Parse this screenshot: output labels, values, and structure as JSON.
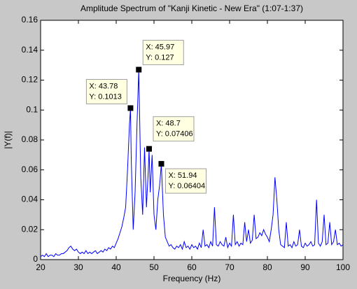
{
  "chart_data": {
    "type": "line",
    "title": "Amplitude Spectrum of \"Kanji Kinetic - New Era\" (1:07-1:37)",
    "x_label": "Frequency (Hz)",
    "y_label": "|Y(f)|",
    "xlim": [
      20,
      100
    ],
    "xticks": [
      20,
      30,
      40,
      50,
      60,
      70,
      80,
      90,
      100
    ],
    "ylim": [
      0,
      0.16
    ],
    "yticks": [
      0,
      0.02,
      0.04,
      0.06,
      0.08,
      0.1,
      0.12,
      0.14,
      0.16
    ],
    "grid": false,
    "series": [
      {
        "color": "#0000ff",
        "x": [
          20,
          20.5,
          21,
          21.5,
          22,
          22.5,
          23,
          23.5,
          24,
          24.5,
          25,
          25.5,
          26,
          26.5,
          27,
          27.5,
          28,
          28.5,
          29,
          29.5,
          30,
          30.5,
          31,
          31.5,
          32,
          32.5,
          33,
          33.5,
          34,
          34.5,
          35,
          35.5,
          36,
          36.5,
          37,
          37.5,
          38,
          38.5,
          39,
          39.5,
          40,
          40.5,
          41,
          41.5,
          42,
          42.5,
          43,
          43.5,
          43.78,
          44,
          44.5,
          45,
          45.5,
          45.97,
          46.5,
          47,
          47.5,
          48,
          48.5,
          48.7,
          49,
          49.5,
          50,
          50.5,
          51,
          51.5,
          51.94,
          52.5,
          53,
          53.5,
          54,
          54.5,
          55,
          55.5,
          56,
          56.5,
          57,
          57.5,
          58,
          58.5,
          59,
          59.5,
          60,
          60.5,
          61,
          61.5,
          62,
          62.5,
          63,
          63.5,
          64,
          64.5,
          65,
          65.5,
          66,
          66.5,
          67,
          67.5,
          68,
          68.5,
          69,
          69.5,
          70,
          70.5,
          71,
          71.5,
          72,
          72.5,
          73,
          73.5,
          74,
          74.5,
          75,
          75.5,
          76,
          76.5,
          77,
          77.5,
          78,
          78.5,
          79,
          79.5,
          80,
          80.5,
          81,
          81.5,
          82,
          82.5,
          83,
          83.5,
          84,
          84.5,
          85,
          85.5,
          86,
          86.5,
          87,
          87.5,
          88,
          88.5,
          89,
          89.5,
          90,
          90.5,
          91,
          91.5,
          92,
          92.5,
          93,
          93.5,
          94,
          94.5,
          95,
          95.5,
          96,
          96.5,
          97,
          97.5,
          98,
          98.5,
          99,
          99.5,
          100
        ],
        "values": [
          0.002,
          0.003,
          0.002,
          0.004,
          0.002,
          0.003,
          0.003,
          0.002,
          0.004,
          0.003,
          0.003,
          0.004,
          0.004,
          0.005,
          0.006,
          0.008,
          0.009,
          0.007,
          0.006,
          0.007,
          0.005,
          0.004,
          0.005,
          0.004,
          0.006,
          0.004,
          0.005,
          0.004,
          0.005,
          0.006,
          0.004,
          0.005,
          0.006,
          0.005,
          0.007,
          0.006,
          0.008,
          0.007,
          0.009,
          0.008,
          0.011,
          0.014,
          0.018,
          0.022,
          0.028,
          0.035,
          0.06,
          0.09,
          0.1013,
          0.065,
          0.02,
          0.045,
          0.09,
          0.127,
          0.055,
          0.03,
          0.075,
          0.035,
          0.06,
          0.07406,
          0.045,
          0.07,
          0.03,
          0.02,
          0.04,
          0.05,
          0.06404,
          0.03,
          0.015,
          0.012,
          0.009,
          0.01,
          0.008,
          0.007,
          0.009,
          0.008,
          0.01,
          0.007,
          0.012,
          0.008,
          0.009,
          0.007,
          0.01,
          0.008,
          0.009,
          0.007,
          0.011,
          0.008,
          0.02,
          0.009,
          0.01,
          0.008,
          0.012,
          0.009,
          0.035,
          0.01,
          0.009,
          0.012,
          0.01,
          0.009,
          0.015,
          0.008,
          0.011,
          0.009,
          0.03,
          0.01,
          0.012,
          0.009,
          0.011,
          0.01,
          0.025,
          0.012,
          0.02,
          0.011,
          0.013,
          0.03,
          0.014,
          0.015,
          0.018,
          0.016,
          0.02,
          0.017,
          0.015,
          0.012,
          0.02,
          0.03,
          0.055,
          0.04,
          0.02,
          0.01,
          0.009,
          0.008,
          0.025,
          0.009,
          0.01,
          0.008,
          0.012,
          0.009,
          0.01,
          0.02,
          0.009,
          0.008,
          0.011,
          0.009,
          0.01,
          0.012,
          0.009,
          0.01,
          0.04,
          0.011,
          0.009,
          0.012,
          0.03,
          0.01,
          0.011,
          0.025,
          0.01,
          0.012,
          0.02,
          0.01,
          0.011,
          0.009,
          0.01
        ]
      }
    ],
    "datatips": [
      {
        "x": 45.97,
        "y": 0.127,
        "x_text": "X: 45.97",
        "y_text": "Y: 0.127"
      },
      {
        "x": 43.78,
        "y": 0.1013,
        "x_text": "X: 43.78",
        "y_text": "Y: 0.1013"
      },
      {
        "x": 48.7,
        "y": 0.07406,
        "x_text": "X: 48.7",
        "y_text": "Y: 0.07406"
      },
      {
        "x": 51.94,
        "y": 0.06404,
        "x_text": "X: 51.94",
        "y_text": "Y: 0.06404"
      }
    ]
  }
}
